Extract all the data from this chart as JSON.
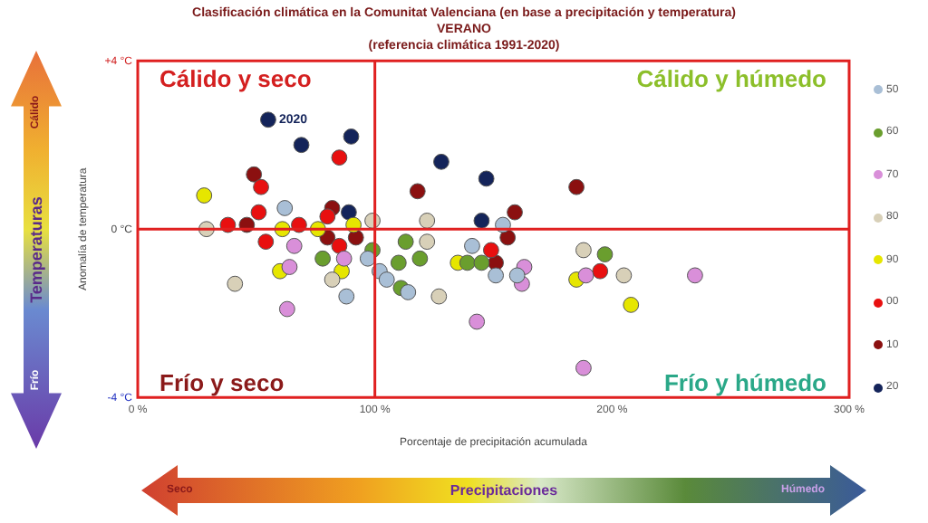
{
  "chart_data": {
    "type": "scatter",
    "title": "Clasificación climática en la Comunitat Valenciana (en base a precipitación y temperatura)",
    "subtitle": "VERANO",
    "xlabel": "Porcentaje de precipitación acumulada",
    "ylabel": "Anomalía de temperatura",
    "xlim": [
      0,
      300
    ],
    "xticks": [
      {
        "value": 0,
        "label": "0 %"
      },
      {
        "value": 100,
        "label": "100 %"
      },
      {
        "value": 200,
        "label": "200 %"
      },
      {
        "value": 300,
        "label": "300 %"
      }
    ],
    "ylim": [
      -4,
      4
    ],
    "yticks": [
      {
        "value": -4,
        "label": "-4 °C"
      },
      {
        "value": 0,
        "label": "0 °C"
      },
      {
        "value": 4,
        "label": "+4 °C"
      }
    ],
    "grid": false,
    "legend": "right",
    "marker": "circle",
    "ref_lines": [
      {
        "axis": "x",
        "value": 100,
        "color": "#e02020"
      },
      {
        "axis": "y",
        "value": 0,
        "color": "#e02020"
      }
    ],
    "annotations": [
      "Cálido y seco",
      "Cálido y húmedo",
      "Frío y seco",
      "Frío y húmedo",
      "Temperaturas",
      "Cálido",
      "Frío",
      "Precipitaciones",
      "Seco",
      "Húmedo",
      "(referencia climática 1991-2020)",
      {
        "text": "2020",
        "x": 55,
        "y": 2.6
      }
    ],
    "series": [
      {
        "name": "50",
        "color": "#a9bfd6",
        "x": [
          62,
          97,
          102,
          105,
          114,
          88,
          141,
          151,
          154,
          160
        ],
        "values": [
          0.5,
          -0.7,
          -1.0,
          -1.2,
          -1.5,
          -1.6,
          -0.4,
          -1.1,
          0.1,
          -1.1
        ]
      },
      {
        "name": "60",
        "color": "#6a9e2e",
        "x": [
          78,
          99,
          111,
          113,
          110,
          119,
          139,
          145,
          197
        ],
        "values": [
          -0.7,
          -0.5,
          -1.4,
          -0.3,
          -0.8,
          -0.7,
          -0.8,
          -0.8,
          -0.6
        ]
      },
      {
        "name": "70",
        "color": "#d98fd9",
        "x": [
          66,
          87,
          64,
          63,
          143,
          163,
          162,
          189,
          235,
          188
        ],
        "values": [
          -0.4,
          -0.7,
          -0.9,
          -1.9,
          -2.2,
          -0.9,
          -1.3,
          -1.1,
          -1.1,
          -3.3
        ]
      },
      {
        "name": "80",
        "color": "#d8d0b8",
        "x": [
          29,
          41,
          82,
          99,
          122,
          122,
          127,
          188,
          205
        ],
        "values": [
          0.0,
          -1.3,
          -1.2,
          0.2,
          0.2,
          -0.3,
          -1.6,
          -0.5,
          -1.1
        ]
      },
      {
        "name": "90",
        "color": "#e6e600",
        "x": [
          28,
          61,
          76,
          91,
          60,
          86,
          135,
          185,
          208
        ],
        "values": [
          0.8,
          0.0,
          0.0,
          0.1,
          -1.0,
          -1.0,
          -0.8,
          -1.2,
          -1.8
        ]
      },
      {
        "name": "00",
        "color": "#e81010",
        "x": [
          85,
          52,
          51,
          38,
          54,
          68,
          80,
          85,
          149,
          195
        ],
        "values": [
          1.7,
          1.0,
          0.4,
          0.1,
          -0.3,
          0.1,
          0.3,
          -0.4,
          -0.5,
          -1.0
        ]
      },
      {
        "name": "10",
        "color": "#8b1010",
        "x": [
          49,
          46,
          82,
          80,
          92,
          118,
          151,
          159,
          156,
          185
        ],
        "values": [
          1.3,
          0.1,
          0.5,
          -0.2,
          -0.2,
          0.9,
          -0.8,
          0.4,
          -0.2,
          1.0
        ]
      },
      {
        "name": "20",
        "color": "#14245a",
        "x": [
          55,
          69,
          90,
          89,
          128,
          147,
          145
        ],
        "values": [
          2.6,
          2.0,
          2.2,
          0.4,
          1.6,
          1.2,
          0.2
        ]
      }
    ]
  }
}
